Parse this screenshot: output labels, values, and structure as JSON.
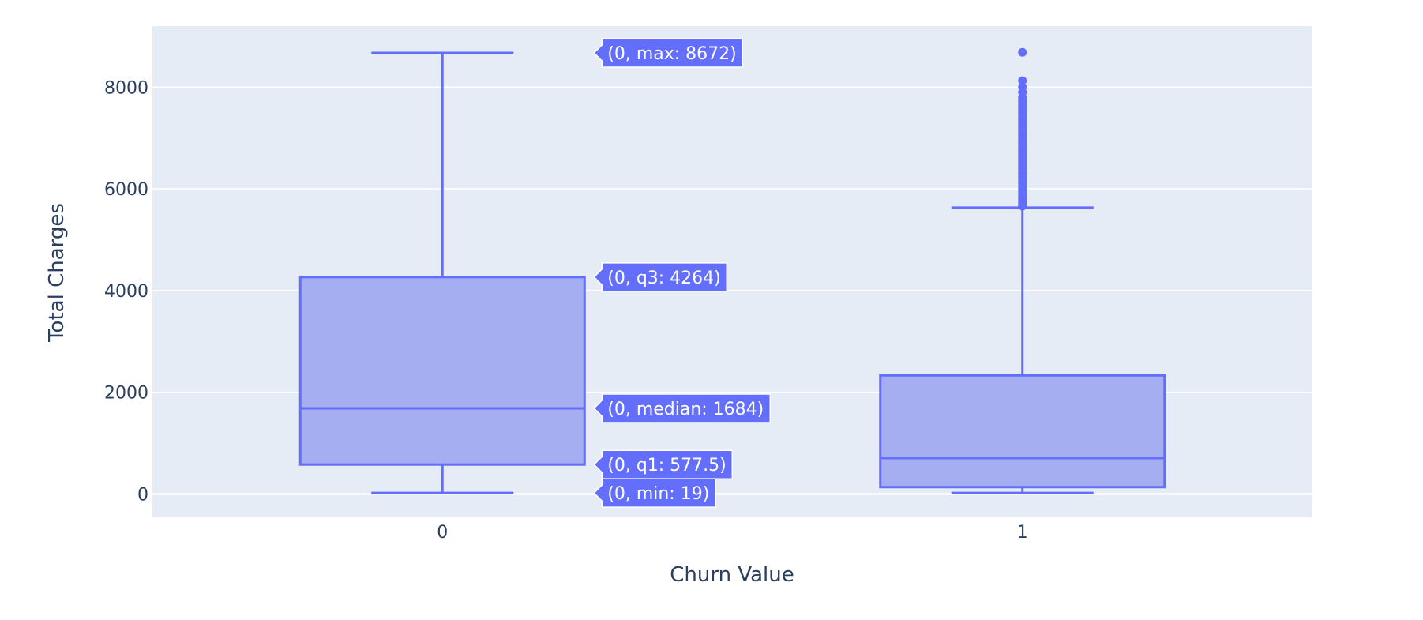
{
  "chart_data": {
    "type": "box",
    "xlabel": "Churn Value",
    "ylabel": "Total Charges",
    "categories": [
      "0",
      "1"
    ],
    "ylim": [
      -460,
      9200
    ],
    "yticks": [
      0,
      2000,
      4000,
      6000,
      8000
    ],
    "ytick_labels": [
      "0",
      "2000",
      "4000",
      "6000",
      "8000"
    ],
    "grid": true,
    "colors": {
      "box_fill": "#a4aef1",
      "box_line": "#636efa",
      "plot_bg": "#e5ecf6",
      "grid": "#ffffff",
      "text": "#2a3f5f"
    },
    "boxes": [
      {
        "x": "0",
        "min": 19,
        "q1": 577.5,
        "median": 1684,
        "q3": 4264,
        "max": 8672,
        "outliers": []
      },
      {
        "x": "1",
        "min": 19,
        "q1": 134,
        "median": 704,
        "q3": 2331,
        "max": 5630,
        "outliers": [
          5660,
          5700,
          5750,
          5800,
          5850,
          5900,
          5950,
          6000,
          6050,
          6100,
          6150,
          6200,
          6250,
          6300,
          6350,
          6400,
          6450,
          6500,
          6550,
          6600,
          6650,
          6700,
          6750,
          6800,
          6850,
          6900,
          6950,
          7000,
          7050,
          7100,
          7150,
          7200,
          7250,
          7300,
          7350,
          7400,
          7450,
          7500,
          7550,
          7600,
          7650,
          7700,
          7750,
          7800,
          7900,
          8000,
          8127,
          8684
        ]
      }
    ],
    "hover_labels": [
      {
        "key": "max",
        "text": "(0, max: 8672)",
        "value": 8672
      },
      {
        "key": "q3",
        "text": "(0, q3: 4264)",
        "value": 4264
      },
      {
        "key": "median",
        "text": "(0, median: 1684)",
        "value": 1684
      },
      {
        "key": "q1",
        "text": "(0, q1: 577.5)",
        "value": 577.5
      },
      {
        "key": "min",
        "text": "(0, min: 19)",
        "value": 19
      }
    ]
  }
}
